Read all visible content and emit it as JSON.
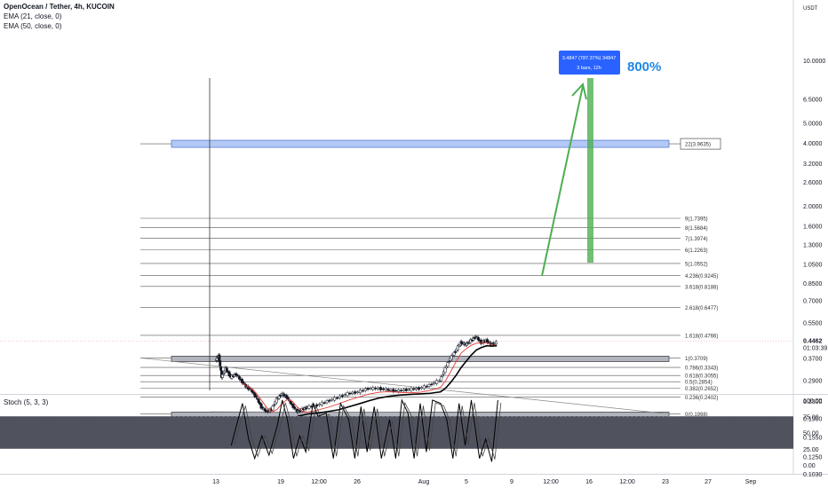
{
  "legend": {
    "title": "OpenOcean / Tether, 4h, KUCOIN",
    "ema21": "EMA (21, close, 0)",
    "ema50": "EMA (50, close, 0)"
  },
  "stoch_label": "Stoch (5, 3, 3)",
  "price_axis": {
    "currency": "USDT",
    "ticks": [
      "10.0000",
      "6.5000",
      "5.0000",
      "4.0000",
      "3.2000",
      "2.6000",
      "2.0000",
      "1.6000",
      "1.3000",
      "1.0500",
      "0.8500",
      "0.7000",
      "0.5500",
      "0.4462",
      "0.3700",
      "0.2900",
      "0.2300",
      "0.1900",
      "0.1550",
      "0.1250",
      "0.1030"
    ],
    "current_price": "0.4462",
    "countdown": "01:03:39"
  },
  "stoch_axis": {
    "ticks": [
      "100.00",
      "75.00",
      "50.00",
      "25.00",
      "0.00"
    ]
  },
  "time_axis": {
    "ticks": [
      "13",
      "19",
      "12:00",
      "26",
      "Aug",
      "5",
      "9",
      "12:00",
      "16",
      "12:00",
      "23",
      "27",
      "Sep"
    ]
  },
  "fib_levels": [
    {
      "label": "22(3.9635)",
      "value": 3.9635
    },
    {
      "label": "9(1.7395)",
      "value": 1.7395
    },
    {
      "label": "8(1.5684)",
      "value": 1.5684
    },
    {
      "label": "7(1.3974)",
      "value": 1.3974
    },
    {
      "label": "6(1.2263)",
      "value": 1.2263
    },
    {
      "label": "5(1.0552)",
      "value": 1.0552
    },
    {
      "label": "4.236(0.9245)",
      "value": 0.9245
    },
    {
      "label": "3.618(0.8188)",
      "value": 0.8188
    },
    {
      "label": "2.618(0.6477)",
      "value": 0.6477
    },
    {
      "label": "1.618(0.4766)",
      "value": 0.4766
    },
    {
      "label": "1(0.3709)",
      "value": 0.3709
    },
    {
      "label": "0.786(0.3343)",
      "value": 0.3343
    },
    {
      "label": "0.618(0.3055)",
      "value": 0.3055
    },
    {
      "label": "0.5(0.2854)",
      "value": 0.2854
    },
    {
      "label": "0.382(0.2652)",
      "value": 0.2652
    },
    {
      "label": "0.236(0.2402)",
      "value": 0.2402
    },
    {
      "label": "0(0.1998)",
      "value": 0.1998
    }
  ],
  "measure_box": {
    "line1": "3.4847 (787.37%) 34847",
    "line2": "3 bars, 12h"
  },
  "annotation": "800%",
  "colors": {
    "green": "#4caf50",
    "blue": "#1e88e5",
    "measure_bg": "#2962ff",
    "zone_blue": "#b3c8f5",
    "zone_gray": "#b2b5be",
    "stoch_band": "#50535e",
    "ema21": "#e53935",
    "ema50": "#000000"
  },
  "chart_data": {
    "type": "candlestick",
    "scale": "log",
    "price_ylim": [
      0.1,
      10
    ],
    "price_path": [
      [
        13,
        0.36
      ],
      [
        13.3,
        0.38
      ],
      [
        13.6,
        0.3
      ],
      [
        14,
        0.33
      ],
      [
        14.5,
        0.3
      ],
      [
        15,
        0.31
      ],
      [
        15.5,
        0.29
      ],
      [
        16,
        0.27
      ],
      [
        16.5,
        0.26
      ],
      [
        17,
        0.24
      ],
      [
        17.5,
        0.215
      ],
      [
        18,
        0.205
      ],
      [
        18.5,
        0.21
      ],
      [
        19,
        0.235
      ],
      [
        19.5,
        0.25
      ],
      [
        20,
        0.24
      ],
      [
        20.5,
        0.22
      ],
      [
        21,
        0.205
      ],
      [
        21.5,
        0.21
      ],
      [
        22,
        0.215
      ],
      [
        23,
        0.22
      ],
      [
        24,
        0.23
      ],
      [
        25,
        0.24
      ],
      [
        26,
        0.25
      ],
      [
        27,
        0.255
      ],
      [
        28,
        0.265
      ],
      [
        29,
        0.265
      ],
      [
        30,
        0.26
      ],
      [
        31,
        0.258
      ],
      [
        32,
        0.262
      ],
      [
        33,
        0.265
      ],
      [
        34,
        0.275
      ],
      [
        35,
        0.29
      ],
      [
        35.5,
        0.33
      ],
      [
        36,
        0.37
      ],
      [
        36.5,
        0.4
      ],
      [
        37,
        0.44
      ],
      [
        37.5,
        0.43
      ],
      [
        38,
        0.45
      ],
      [
        38.5,
        0.47
      ],
      [
        39,
        0.44
      ],
      [
        39.5,
        0.45
      ],
      [
        40,
        0.43
      ],
      [
        40.5,
        0.44
      ]
    ],
    "stoch_ylim": [
      0,
      100
    ],
    "stoch_band": [
      25,
      75
    ],
    "stoch_k": [
      [
        14.5,
        30
      ],
      [
        15,
        60
      ],
      [
        15.6,
        95
      ],
      [
        16.2,
        40
      ],
      [
        16.8,
        10
      ],
      [
        17.5,
        45
      ],
      [
        18.2,
        15
      ],
      [
        19,
        60
      ],
      [
        19.5,
        100
      ],
      [
        20,
        70
      ],
      [
        20.6,
        10
      ],
      [
        21.2,
        45
      ],
      [
        21.8,
        20
      ],
      [
        22.5,
        95
      ],
      [
        23,
        75
      ],
      [
        23.8,
        80
      ],
      [
        24.5,
        10
      ],
      [
        25.2,
        95
      ],
      [
        26,
        70
      ],
      [
        26.6,
        10
      ],
      [
        27.2,
        90
      ],
      [
        27.8,
        20
      ],
      [
        28.5,
        90
      ],
      [
        29.2,
        10
      ],
      [
        30,
        70
      ],
      [
        30.6,
        10
      ],
      [
        31.2,
        100
      ],
      [
        31.8,
        80
      ],
      [
        32.4,
        10
      ],
      [
        33,
        95
      ],
      [
        33.6,
        20
      ],
      [
        34.2,
        100
      ],
      [
        35,
        95
      ],
      [
        35.6,
        70
      ],
      [
        36.2,
        10
      ],
      [
        36.8,
        95
      ],
      [
        37.4,
        30
      ],
      [
        38,
        100
      ],
      [
        38.8,
        10
      ],
      [
        39.4,
        40
      ],
      [
        40,
        5
      ],
      [
        40.6,
        100
      ]
    ]
  }
}
